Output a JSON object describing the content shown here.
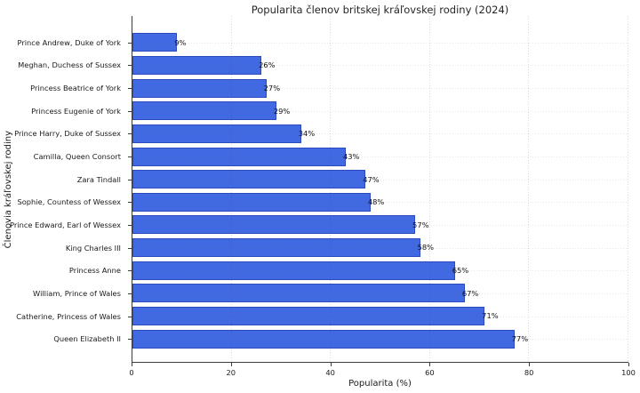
{
  "chart_data": {
    "type": "bar",
    "orientation": "horizontal",
    "title": "Popularita členov britskej kráľovskej rodiny (2024)",
    "xlabel": "Popularita (%)",
    "ylabel": "Členovia kráľovskej rodiny",
    "categories": [
      "Prince Andrew, Duke of York",
      "Meghan, Duchess of Sussex",
      "Princess Beatrice of York",
      "Princess Eugenie of York",
      "Prince Harry, Duke of Sussex",
      "Camilla, Queen Consort",
      "Zara Tindall",
      "Sophie, Countess of Wessex",
      "Prince Edward, Earl of Wessex",
      "King Charles III",
      "Princess Anne",
      "William, Prince of Wales",
      "Catherine, Princess of Wales",
      "Queen Elizabeth II"
    ],
    "values": [
      9,
      26,
      27,
      29,
      34,
      43,
      47,
      48,
      57,
      58,
      65,
      67,
      71,
      77
    ],
    "value_labels": [
      "9%",
      "26%",
      "27%",
      "29%",
      "34%",
      "43%",
      "47%",
      "48%",
      "57%",
      "58%",
      "65%",
      "67%",
      "71%",
      "77%"
    ],
    "xlim": [
      0,
      100
    ],
    "xticks": [
      0,
      20,
      40,
      60,
      80,
      100
    ],
    "grid": "dotted",
    "legend_position": "none",
    "bar_color": "#4169e1",
    "bar_edge_color": "#2b4bbf",
    "axis_color": "#3c3c3c",
    "background_color": "#ffffff"
  }
}
